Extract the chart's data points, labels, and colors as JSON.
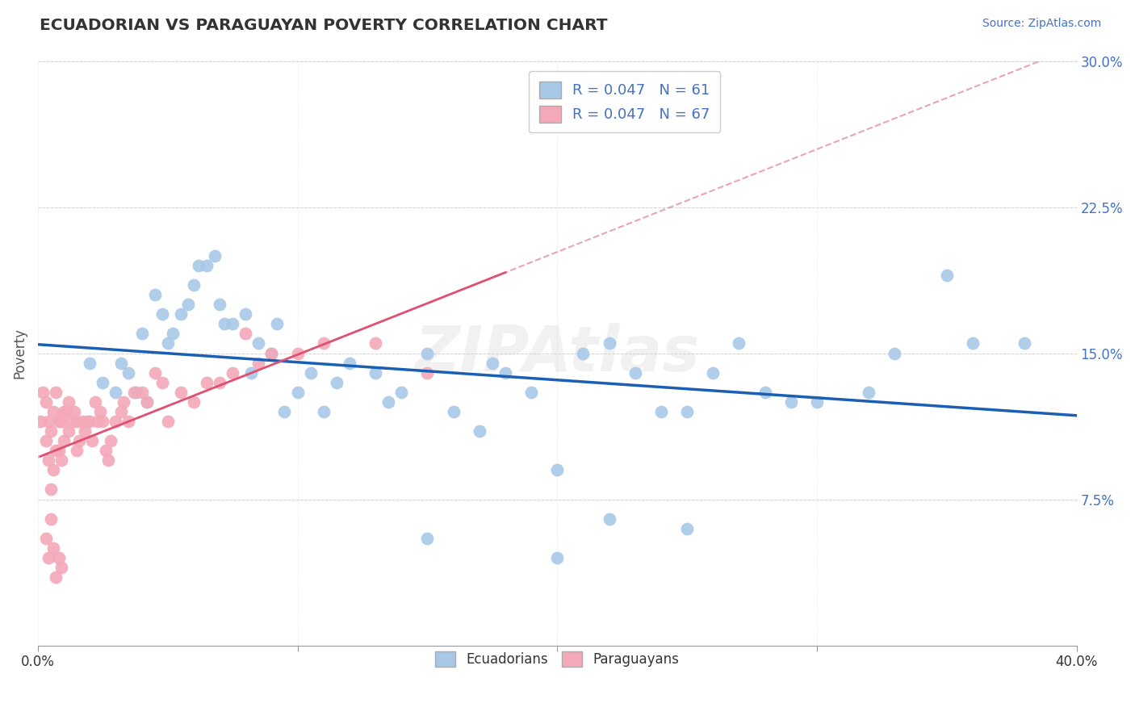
{
  "title": "ECUADORIAN VS PARAGUAYAN POVERTY CORRELATION CHART",
  "source_text": "Source: ZipAtlas.com",
  "ylabel": "Poverty",
  "xlim": [
    0.0,
    0.4
  ],
  "ylim": [
    0.0,
    0.3
  ],
  "yticks": [
    0.0,
    0.075,
    0.15,
    0.225,
    0.3
  ],
  "ytick_labels": [
    "",
    "7.5%",
    "15.0%",
    "22.5%",
    "30.0%"
  ],
  "xtick_positions": [
    0.0,
    0.1,
    0.2,
    0.3,
    0.4
  ],
  "ecu_R": 0.047,
  "ecu_N": 61,
  "par_R": 0.047,
  "par_N": 67,
  "ecu_color": "#a8c8e8",
  "par_color": "#f4a8b8",
  "ecu_line_color": "#1a5fb4",
  "par_line_color": "#e05070",
  "par_dash_color": "#e08090",
  "watermark": "ZIPAtlas",
  "legend_label_ecu": "Ecuadorians",
  "legend_label_par": "Paraguayans",
  "ecu_x": [
    0.02,
    0.025,
    0.03,
    0.032,
    0.035,
    0.038,
    0.04,
    0.042,
    0.045,
    0.048,
    0.05,
    0.052,
    0.055,
    0.058,
    0.06,
    0.062,
    0.065,
    0.068,
    0.07,
    0.072,
    0.075,
    0.08,
    0.082,
    0.085,
    0.09,
    0.092,
    0.095,
    0.1,
    0.105,
    0.11,
    0.115,
    0.12,
    0.13,
    0.135,
    0.14,
    0.15,
    0.16,
    0.17,
    0.175,
    0.18,
    0.19,
    0.2,
    0.21,
    0.22,
    0.23,
    0.24,
    0.25,
    0.26,
    0.27,
    0.28,
    0.29,
    0.3,
    0.32,
    0.33,
    0.35,
    0.36,
    0.38,
    0.22,
    0.15,
    0.2,
    0.25
  ],
  "ecu_y": [
    0.145,
    0.135,
    0.13,
    0.145,
    0.14,
    0.13,
    0.16,
    0.125,
    0.18,
    0.17,
    0.155,
    0.16,
    0.17,
    0.175,
    0.185,
    0.195,
    0.195,
    0.2,
    0.175,
    0.165,
    0.165,
    0.17,
    0.14,
    0.155,
    0.15,
    0.165,
    0.12,
    0.13,
    0.14,
    0.12,
    0.135,
    0.145,
    0.14,
    0.125,
    0.13,
    0.15,
    0.12,
    0.11,
    0.145,
    0.14,
    0.13,
    0.09,
    0.15,
    0.155,
    0.14,
    0.12,
    0.12,
    0.14,
    0.155,
    0.13,
    0.125,
    0.125,
    0.13,
    0.15,
    0.19,
    0.155,
    0.155,
    0.065,
    0.055,
    0.045,
    0.06
  ],
  "par_x": [
    0.001,
    0.002,
    0.003,
    0.003,
    0.004,
    0.004,
    0.005,
    0.005,
    0.006,
    0.006,
    0.007,
    0.007,
    0.008,
    0.008,
    0.009,
    0.009,
    0.01,
    0.01,
    0.011,
    0.012,
    0.012,
    0.013,
    0.014,
    0.015,
    0.015,
    0.016,
    0.017,
    0.018,
    0.019,
    0.02,
    0.021,
    0.022,
    0.023,
    0.024,
    0.025,
    0.026,
    0.027,
    0.028,
    0.03,
    0.032,
    0.033,
    0.035,
    0.037,
    0.04,
    0.042,
    0.045,
    0.048,
    0.05,
    0.055,
    0.06,
    0.065,
    0.07,
    0.075,
    0.08,
    0.085,
    0.09,
    0.1,
    0.11,
    0.13,
    0.15,
    0.003,
    0.004,
    0.005,
    0.006,
    0.007,
    0.008,
    0.009
  ],
  "par_y": [
    0.115,
    0.13,
    0.125,
    0.105,
    0.115,
    0.095,
    0.11,
    0.08,
    0.12,
    0.09,
    0.13,
    0.1,
    0.1,
    0.115,
    0.115,
    0.095,
    0.12,
    0.105,
    0.12,
    0.125,
    0.11,
    0.115,
    0.12,
    0.115,
    0.1,
    0.105,
    0.115,
    0.11,
    0.115,
    0.115,
    0.105,
    0.125,
    0.115,
    0.12,
    0.115,
    0.1,
    0.095,
    0.105,
    0.115,
    0.12,
    0.125,
    0.115,
    0.13,
    0.13,
    0.125,
    0.14,
    0.135,
    0.115,
    0.13,
    0.125,
    0.135,
    0.135,
    0.14,
    0.16,
    0.145,
    0.15,
    0.15,
    0.155,
    0.155,
    0.14,
    0.055,
    0.045,
    0.065,
    0.05,
    0.035,
    0.045,
    0.04
  ]
}
